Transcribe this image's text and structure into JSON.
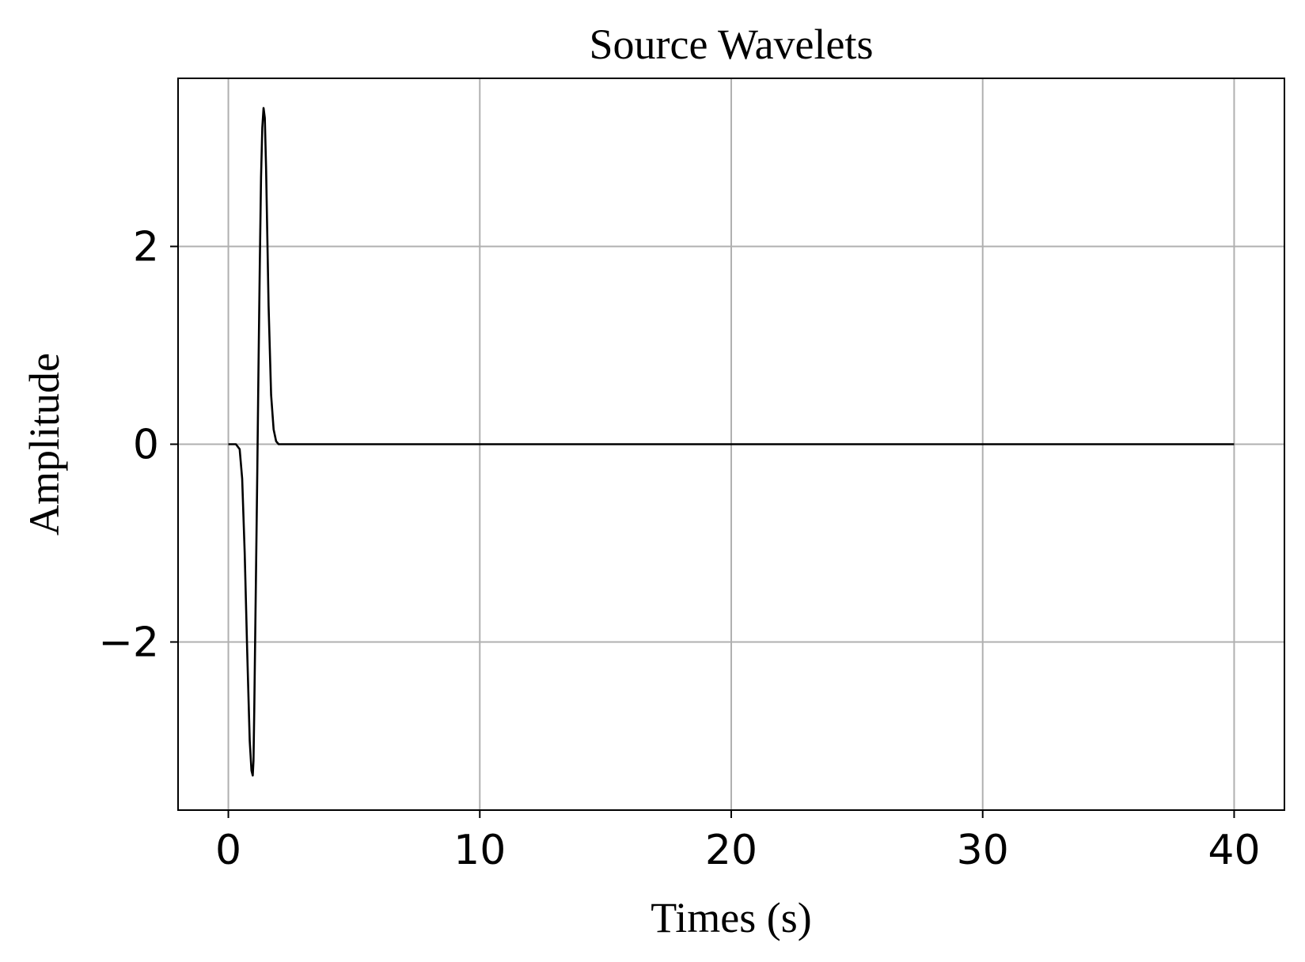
{
  "chart_data": {
    "type": "line",
    "title": "Source Wavelets",
    "xlabel": "Times (s)",
    "ylabel": "Amplitude",
    "xlim": [
      -2,
      42
    ],
    "ylim": [
      -3.7,
      3.7
    ],
    "grid": true,
    "x_ticks": [
      0,
      10,
      20,
      30,
      40
    ],
    "x_tick_labels": [
      "0",
      "10",
      "20",
      "30",
      "40"
    ],
    "y_ticks": [
      -2,
      0,
      2
    ],
    "y_tick_labels": [
      "−2",
      "0",
      "2"
    ],
    "series": [
      {
        "color": "#000000",
        "x": [
          0,
          0.3,
          0.45,
          0.55,
          0.65,
          0.75,
          0.85,
          0.92,
          0.97,
          1.0,
          1.03,
          1.08,
          1.15,
          1.2,
          1.25,
          1.3,
          1.35,
          1.4,
          1.45,
          1.5,
          1.55,
          1.6,
          1.7,
          1.8,
          1.9,
          2.0,
          2.2,
          2.5,
          5,
          10,
          20,
          30,
          40
        ],
        "y": [
          0,
          0,
          -0.05,
          -0.35,
          -1.1,
          -2.1,
          -3.0,
          -3.3,
          -3.35,
          -3.2,
          -2.7,
          -1.7,
          -0.3,
          0.8,
          1.8,
          2.7,
          3.2,
          3.4,
          3.3,
          2.8,
          2.1,
          1.4,
          0.5,
          0.15,
          0.03,
          0,
          0,
          0,
          0,
          0,
          0,
          0,
          0
        ]
      }
    ]
  }
}
